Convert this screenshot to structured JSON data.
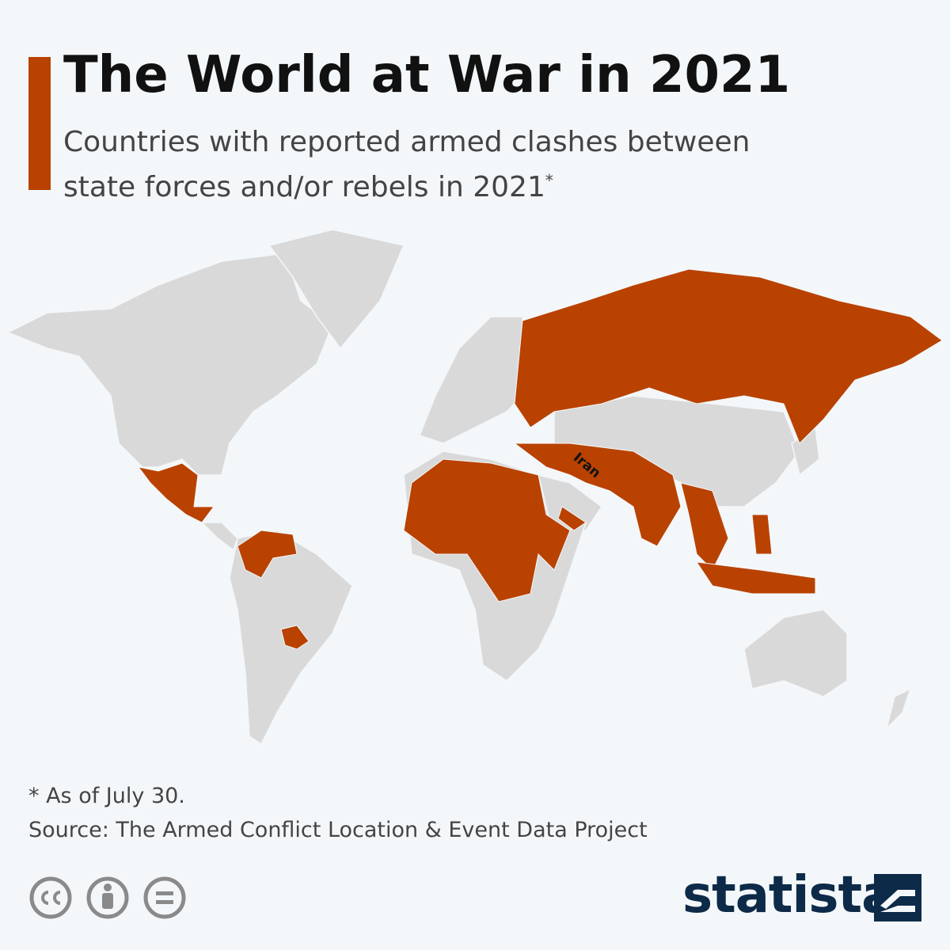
{
  "header": {
    "title": "The World at War in 2021",
    "subtitle": "Countries with reported armed clashes between state forces and/or rebels in 2021",
    "subtitle_mark": "*"
  },
  "map": {
    "labels": [
      "Iran"
    ]
  },
  "footer": {
    "note": "* As of July 30.",
    "source": "Source: The Armed Conflict Location & Event Data Project",
    "brand": "statista"
  }
}
